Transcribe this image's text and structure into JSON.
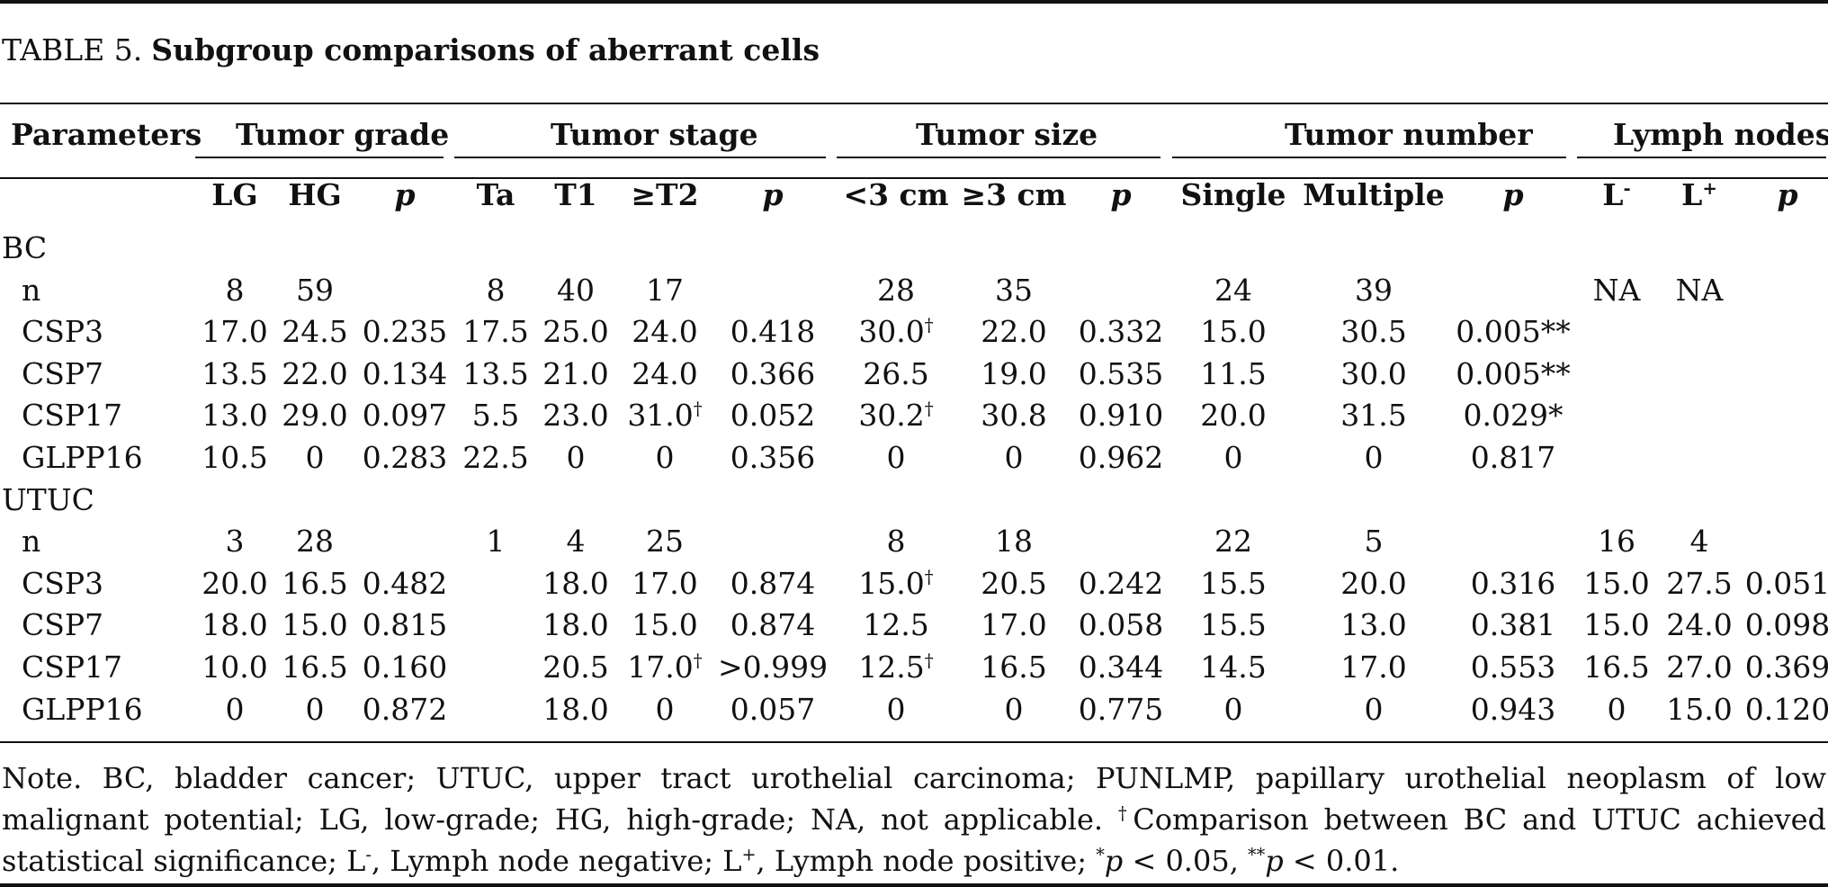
{
  "caption": {
    "label": "TABLE 5.",
    "title": "Subgroup comparisons of aberrant cells"
  },
  "headers": {
    "parameters": "Parameters",
    "groups": [
      "Tumor grade",
      "Tumor stage",
      "Tumor size",
      "Tumor number",
      "Lymph nodes"
    ],
    "columns": [
      "LG",
      "HG",
      "p",
      "Ta",
      "T1",
      "≥T2",
      "p",
      "<3 cm",
      "≥3 cm",
      "p",
      "Single",
      "Multiple",
      "p",
      "L",
      "L",
      "p"
    ],
    "col_sups": [
      "",
      "",
      "",
      "",
      "",
      "",
      "",
      "",
      "",
      "",
      "",
      "",
      "",
      "-",
      "+",
      ""
    ]
  },
  "sections": [
    {
      "name": "BC",
      "rows": [
        {
          "label": "n",
          "cells": [
            "8",
            "59",
            "",
            "8",
            "40",
            "17",
            "",
            "28",
            "35",
            "",
            "24",
            "39",
            "",
            "NA",
            "NA",
            ""
          ]
        },
        {
          "label": "CSP3",
          "cells": [
            "17.0",
            "24.5",
            "0.235",
            "17.5",
            "25.0",
            "24.0",
            "0.418",
            "30.0",
            "22.0",
            "0.332",
            "15.0",
            "30.5",
            "0.005**",
            "",
            "",
            ""
          ]
        },
        {
          "label": "CSP7",
          "cells": [
            "13.5",
            "22.0",
            "0.134",
            "13.5",
            "21.0",
            "24.0",
            "0.366",
            "26.5",
            "19.0",
            "0.535",
            "11.5",
            "30.0",
            "0.005**",
            "",
            "",
            ""
          ]
        },
        {
          "label": "CSP17",
          "cells": [
            "13.0",
            "29.0",
            "0.097",
            "5.5",
            "23.0",
            "31.0",
            "0.052",
            "30.2",
            "30.8",
            "0.910",
            "20.0",
            "31.5",
            "0.029*",
            "",
            "",
            ""
          ]
        },
        {
          "label": "GLPP16",
          "cells": [
            "10.5",
            "0",
            "0.283",
            "22.5",
            "0",
            "0",
            "0.356",
            "0",
            "0",
            "0.962",
            "0",
            "0",
            "0.817",
            "",
            "",
            ""
          ]
        }
      ]
    },
    {
      "name": "UTUC",
      "rows": [
        {
          "label": "n",
          "cells": [
            "3",
            "28",
            "",
            "1",
            "4",
            "25",
            "",
            "8",
            "18",
            "",
            "22",
            "5",
            "",
            "16",
            "4",
            ""
          ]
        },
        {
          "label": "CSP3",
          "cells": [
            "20.0",
            "16.5",
            "0.482",
            "",
            "18.0",
            "17.0",
            "0.874",
            "15.0",
            "20.5",
            "0.242",
            "15.5",
            "20.0",
            "0.316",
            "15.0",
            "27.5",
            "0.051"
          ]
        },
        {
          "label": "CSP7",
          "cells": [
            "18.0",
            "15.0",
            "0.815",
            "",
            "18.0",
            "15.0",
            "0.874",
            "12.5",
            "17.0",
            "0.058",
            "15.5",
            "13.0",
            "0.381",
            "15.0",
            "24.0",
            "0.098"
          ]
        },
        {
          "label": "CSP17",
          "cells": [
            "10.0",
            "16.5",
            "0.160",
            "",
            "20.5",
            "17.0",
            ">0.999",
            "12.5",
            "16.5",
            "0.344",
            "14.5",
            "17.0",
            "0.553",
            "16.5",
            "27.0",
            "0.369"
          ]
        },
        {
          "label": "GLPP16",
          "cells": [
            "0",
            "0",
            "0.872",
            "",
            "18.0",
            "0",
            "0.057",
            "0",
            "0",
            "0.775",
            "0",
            "0",
            "0.943",
            "0",
            "15.0",
            "0.120"
          ]
        }
      ]
    }
  ],
  "dagger_mark": "†",
  "note": {
    "p1": "Note. BC, bladder cancer; UTUC, upper tract urothelial carcinoma; PUNLMP, papillary urothelial neoplasm of low malignant potential; LG, low-grade; HG, high-grade; NA, not applicable.",
    "dagger": "†",
    "p2": "Comparison between BC and UTUC achieved statistical significance; L",
    "lminus_sup": "-",
    "p3": ", Lymph node negative; L",
    "lplus_sup": "+",
    "p4": ", Lymph node positive;",
    "star1": "*",
    "pvar1": "p",
    "lt1": " < 0.05,",
    "star2": "**",
    "pvar2": "p",
    "lt2": " < 0.01."
  }
}
